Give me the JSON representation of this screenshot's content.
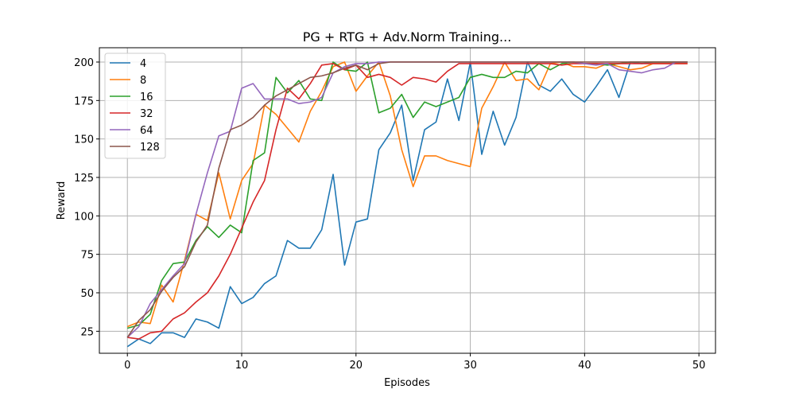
{
  "chart_data": {
    "type": "line",
    "title": "PG + RTG + Adv.Norm Training...",
    "xlabel": "Episodes",
    "ylabel": "Reward",
    "xlim": [
      -2.45,
      51.45
    ],
    "ylim": [
      10.7,
      209.3
    ],
    "xticks": [
      0,
      10,
      20,
      30,
      40,
      50
    ],
    "yticks": [
      25,
      50,
      75,
      100,
      125,
      150,
      175,
      200
    ],
    "grid": true,
    "legend_position": "top-left",
    "x": [
      0,
      1,
      2,
      3,
      4,
      5,
      6,
      7,
      8,
      9,
      10,
      11,
      12,
      13,
      14,
      15,
      16,
      17,
      18,
      19,
      20,
      21,
      22,
      23,
      24,
      25,
      26,
      27,
      28,
      29,
      30,
      31,
      32,
      33,
      34,
      35,
      36,
      37,
      38,
      39,
      40,
      41,
      42,
      43,
      44,
      45,
      46,
      47,
      48,
      49
    ],
    "series": [
      {
        "name": "4",
        "color": "#1f77b4",
        "values": [
          15,
          20,
          17,
          24,
          24,
          21,
          33,
          31,
          27,
          54,
          43,
          47,
          56,
          61,
          84,
          79,
          79,
          91,
          127,
          68,
          96,
          98,
          143,
          154,
          172,
          123,
          156,
          161,
          189,
          162,
          200,
          140,
          168,
          146,
          164,
          200,
          185,
          181,
          189,
          179,
          174,
          184,
          195,
          177,
          200,
          199,
          200,
          200,
          200,
          200
        ]
      },
      {
        "name": "8",
        "color": "#ff7f0e",
        "values": [
          28,
          31,
          30,
          55,
          44,
          71,
          101,
          97,
          128,
          98,
          123,
          134,
          172,
          166,
          157,
          148,
          168,
          181,
          197,
          200,
          181,
          191,
          200,
          178,
          143,
          119,
          139,
          139,
          136,
          134,
          132,
          170,
          184,
          200,
          188,
          189,
          182,
          199,
          200,
          197,
          197,
          196,
          199,
          197,
          195,
          196,
          199,
          199,
          199,
          199
        ]
      },
      {
        "name": "16",
        "color": "#2ca02c",
        "values": [
          27,
          29,
          36,
          58,
          69,
          70,
          84,
          93,
          86,
          94,
          89,
          136,
          141,
          190,
          180,
          188,
          176,
          175,
          200,
          195,
          194,
          200,
          167,
          170,
          179,
          164,
          174,
          171,
          174,
          177,
          190,
          192,
          190,
          190,
          194,
          193,
          199,
          195,
          199,
          200,
          199,
          199,
          198,
          199,
          200,
          200,
          200,
          200,
          200,
          200
        ]
      },
      {
        "name": "32",
        "color": "#d62728",
        "values": [
          21,
          20,
          24,
          25,
          33,
          37,
          44,
          50,
          61,
          75,
          92,
          109,
          123,
          156,
          183,
          176,
          186,
          198,
          199,
          195,
          198,
          190,
          192,
          190,
          185,
          190,
          189,
          187,
          194,
          199,
          199,
          199,
          199,
          199,
          199,
          199,
          199,
          199,
          198,
          199,
          199,
          199,
          199,
          199,
          199,
          199,
          199,
          199,
          199,
          199
        ]
      },
      {
        "name": "64",
        "color": "#9467bd",
        "values": [
          21,
          28,
          43,
          52,
          61,
          69,
          101,
          128,
          152,
          155,
          183,
          186,
          176,
          176,
          176,
          173,
          174,
          177,
          193,
          197,
          199,
          199,
          200,
          200,
          200,
          200,
          200,
          200,
          200,
          200,
          200,
          200,
          200,
          200,
          200,
          200,
          200,
          200,
          200,
          200,
          199,
          198,
          199,
          195,
          194,
          193,
          195,
          196,
          200,
          200
        ]
      },
      {
        "name": "128",
        "color": "#8c564b",
        "values": [
          21,
          32,
          39,
          51,
          60,
          67,
          83,
          94,
          131,
          156,
          159,
          164,
          172,
          178,
          182,
          186,
          190,
          191,
          193,
          196,
          198,
          195,
          199,
          200,
          200,
          200,
          200,
          200,
          200,
          200,
          200,
          200,
          200,
          200,
          200,
          200,
          200,
          200,
          200,
          200,
          200,
          200,
          200,
          200,
          200,
          200,
          200,
          200,
          200,
          200
        ]
      }
    ]
  }
}
